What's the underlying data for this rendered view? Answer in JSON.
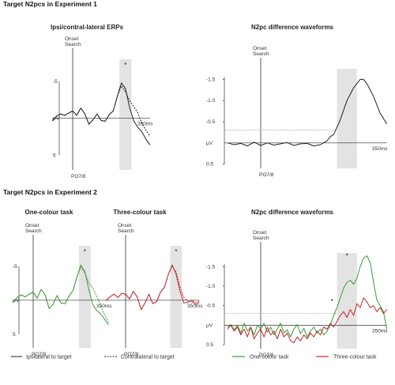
{
  "sections": [
    {
      "title": "Target N2pcs in Experiment 1"
    },
    {
      "title": "Target N2pcs in Experiment 2"
    }
  ],
  "chart_data": [
    {
      "type": "line",
      "title": "Ipsi/contral-lateral ERPs",
      "ylabel": "μV",
      "xlabel_end": "350ms",
      "onset_label": [
        "Onset",
        "Search"
      ],
      "electrode": "PO7/8",
      "yticks": [
        "-5",
        "5"
      ],
      "ylim": [
        -8,
        7
      ],
      "xlim": [
        -100,
        380
      ],
      "shaded_window": [
        230,
        290
      ],
      "significance": "*",
      "series": [
        {
          "key": "ipsi",
          "style": "solid",
          "color": "#222222",
          "x": [
            -100,
            -80,
            -60,
            -40,
            -20,
            0,
            20,
            40,
            60,
            80,
            100,
            120,
            140,
            160,
            180,
            200,
            220,
            240,
            260,
            280,
            300,
            320,
            340,
            360,
            380
          ],
          "values": [
            0.3,
            -0.3,
            -0.6,
            -0.4,
            -0.7,
            -1.0,
            -0.4,
            -1.4,
            -0.6,
            0.8,
            0.2,
            -0.6,
            0.3,
            0.4,
            -0.5,
            -1.0,
            -3.0,
            -4.8,
            -4.0,
            -1.5,
            0.3,
            1.2,
            1.8,
            2.8,
            3.6
          ]
        },
        {
          "key": "contra",
          "style": "dashed",
          "color": "#222222",
          "x": [
            -100,
            -80,
            -60,
            -40,
            -20,
            0,
            20,
            40,
            60,
            80,
            100,
            120,
            140,
            160,
            180,
            200,
            220,
            240,
            260,
            280,
            300,
            320,
            340,
            360,
            380
          ],
          "values": [
            0.3,
            -0.3,
            -0.6,
            -0.4,
            -0.7,
            -1.0,
            -0.4,
            -1.4,
            -0.6,
            0.8,
            0.2,
            -0.6,
            0.3,
            0.4,
            -0.5,
            -1.0,
            -3.0,
            -4.4,
            -3.6,
            -2.4,
            -1.6,
            -0.8,
            0.6,
            1.6,
            2.4
          ]
        }
      ]
    },
    {
      "type": "line",
      "title": "N2pc difference waveforms",
      "ylabel": "μV",
      "xlabel_end": "350ms",
      "onset_label": [
        "Onset",
        "Search"
      ],
      "electrode": "PO7/8",
      "yticks": [
        "-1.5",
        "-1.0",
        "-0.5",
        "μV",
        "0.5"
      ],
      "ytick_values": [
        -1.5,
        -1.0,
        -0.5,
        0.0,
        0.5
      ],
      "ylim": [
        -1.75,
        0.6
      ],
      "xlim": [
        -100,
        380
      ],
      "shaded_window": [
        230,
        290
      ],
      "threshold": -0.3,
      "series": [
        {
          "key": "difference",
          "style": "solid",
          "color": "#222222",
          "x": [
            -100,
            -80,
            -60,
            -40,
            -20,
            0,
            20,
            40,
            60,
            80,
            100,
            120,
            140,
            160,
            180,
            200,
            210,
            220,
            240,
            260,
            280,
            300,
            310,
            320,
            340,
            360,
            380
          ],
          "values": [
            0.0,
            0.04,
            0.01,
            0.07,
            -0.02,
            0.06,
            0.0,
            0.05,
            0.02,
            -0.01,
            0.06,
            0.02,
            0.01,
            0.07,
            0.04,
            -0.05,
            -0.15,
            -0.2,
            -0.55,
            -1.0,
            -1.3,
            -1.5,
            -1.5,
            -1.4,
            -1.1,
            -0.7,
            -0.45
          ]
        }
      ]
    },
    {
      "type": "line",
      "title": "One-colour task",
      "ylabel": "μV",
      "xlabel_end": "350ms",
      "onset_label": [
        "Onset",
        "Search"
      ],
      "electrode": "PO7/8",
      "yticks": [
        "-5",
        "5"
      ],
      "ylim": [
        -8,
        7
      ],
      "xlim": [
        -100,
        380
      ],
      "shaded_window": [
        230,
        290
      ],
      "significance": "*",
      "series": [
        {
          "key": "ipsi",
          "style": "solid",
          "color": "#3a9a3a",
          "x": [
            -100,
            -80,
            -60,
            -40,
            -20,
            0,
            20,
            40,
            60,
            80,
            100,
            120,
            140,
            160,
            180,
            200,
            220,
            240,
            260,
            280,
            300,
            320,
            340,
            360,
            380
          ],
          "values": [
            0.2,
            -0.4,
            -0.8,
            -0.5,
            -0.9,
            -1.2,
            -0.3,
            -1.6,
            -0.8,
            1.2,
            0.6,
            -0.7,
            0.4,
            0.5,
            -0.6,
            -1.4,
            -3.4,
            -5.2,
            -4.2,
            -1.6,
            0.6,
            1.5,
            2.0,
            2.8,
            3.6
          ]
        },
        {
          "key": "contra",
          "style": "dashed",
          "color": "#3a9a3a",
          "x": [
            -100,
            -80,
            -60,
            -40,
            -20,
            0,
            20,
            40,
            60,
            80,
            100,
            120,
            140,
            160,
            180,
            200,
            220,
            240,
            260,
            280,
            300,
            320,
            340,
            360,
            380
          ],
          "values": [
            0.2,
            -0.4,
            -0.8,
            -0.5,
            -0.9,
            -1.2,
            -0.3,
            -1.6,
            -0.8,
            1.2,
            0.6,
            -0.7,
            0.4,
            0.5,
            -0.6,
            -1.4,
            -3.4,
            -4.9,
            -4.0,
            -2.6,
            -1.8,
            -0.6,
            0.8,
            2.2,
            3.2
          ]
        }
      ]
    },
    {
      "type": "line",
      "title": "Three-colour task",
      "ylabel": "",
      "xlabel_end": "350ms",
      "onset_label": [
        "Onset",
        "Search"
      ],
      "electrode": "PO7/8",
      "yticks": [],
      "ylim": [
        -8,
        7
      ],
      "xlim": [
        -100,
        380
      ],
      "shaded_window": [
        230,
        290
      ],
      "significance": "*",
      "series": [
        {
          "key": "ipsi",
          "style": "solid",
          "color": "#c0282d",
          "x": [
            -100,
            -80,
            -60,
            -40,
            -20,
            0,
            20,
            40,
            60,
            80,
            100,
            120,
            140,
            160,
            180,
            200,
            220,
            240,
            260,
            280,
            300,
            320,
            340,
            360,
            380
          ],
          "values": [
            0.0,
            -0.5,
            -0.9,
            -0.4,
            -1.0,
            -0.9,
            -0.2,
            -1.3,
            -0.5,
            1.4,
            0.4,
            -0.9,
            0.5,
            0.2,
            -1.2,
            -1.9,
            -3.8,
            -5.2,
            -3.8,
            -1.4,
            0.4,
            0.3,
            0.1,
            0.6,
            0.3
          ]
        },
        {
          "key": "contra",
          "style": "dashed",
          "color": "#c0282d",
          "x": [
            -100,
            -80,
            -60,
            -40,
            -20,
            0,
            20,
            40,
            60,
            80,
            100,
            120,
            140,
            160,
            180,
            200,
            220,
            240,
            260,
            280,
            300,
            320,
            340,
            360,
            380
          ],
          "values": [
            0.0,
            -0.5,
            -0.9,
            -0.4,
            -1.0,
            -0.9,
            -0.2,
            -1.3,
            -0.5,
            1.4,
            0.4,
            -0.9,
            0.5,
            0.2,
            -1.2,
            -1.9,
            -3.8,
            -5.0,
            -4.2,
            -2.0,
            -0.4,
            0.1,
            0.0,
            0.3,
            0.1
          ]
        }
      ]
    },
    {
      "type": "line",
      "title": "N2pc difference waveforms",
      "ylabel": "μV",
      "xlabel_end": "350ms",
      "onset_label": [
        "Onset",
        "Search"
      ],
      "electrode": "PO7/8",
      "yticks": [
        "-1.5",
        "-1.0",
        "-0.5",
        "μV",
        "0.5"
      ],
      "ytick_values": [
        -1.5,
        -1.0,
        -0.5,
        0.0,
        0.5
      ],
      "ylim": [
        -1.85,
        0.6
      ],
      "xlim": [
        -100,
        380
      ],
      "shaded_window": [
        230,
        290
      ],
      "threshold": -0.3,
      "significance_marks": [
        {
          "label": "*",
          "x": 215,
          "y": -0.55
        },
        {
          "label": "*",
          "x": 260,
          "y": -1.72
        }
      ],
      "series": [
        {
          "key": "one-colour",
          "style": "solid",
          "color": "#3a9a3a",
          "x": [
            -100,
            -90,
            -80,
            -70,
            -60,
            -50,
            -40,
            -30,
            -20,
            -10,
            0,
            10,
            20,
            30,
            40,
            50,
            60,
            70,
            80,
            90,
            100,
            110,
            120,
            130,
            140,
            150,
            160,
            170,
            180,
            190,
            200,
            210,
            220,
            230,
            240,
            250,
            260,
            270,
            280,
            290,
            300,
            310,
            320,
            330,
            340,
            350,
            360,
            370,
            380
          ],
          "values": [
            0.05,
            -0.02,
            0.12,
            0.0,
            0.2,
            -0.05,
            0.15,
            0.05,
            0.25,
            0.0,
            0.1,
            -0.05,
            0.18,
            0.05,
            0.25,
            0.1,
            -0.05,
            0.2,
            0.12,
            0.3,
            0.1,
            -0.02,
            0.22,
            0.08,
            0.3,
            0.15,
            0.05,
            0.2,
            0.1,
            0.25,
            0.15,
            0.0,
            -0.25,
            -0.45,
            -0.7,
            -0.95,
            -1.1,
            -1.15,
            -1.05,
            -1.2,
            -1.5,
            -1.72,
            -1.78,
            -1.6,
            -1.1,
            -0.65,
            -0.5,
            -0.35,
            0.1
          ]
        },
        {
          "key": "three-colour",
          "style": "solid",
          "color": "#c0282d",
          "x": [
            -100,
            -90,
            -80,
            -70,
            -60,
            -50,
            -40,
            -30,
            -20,
            -10,
            0,
            10,
            20,
            30,
            40,
            50,
            60,
            70,
            80,
            90,
            100,
            110,
            120,
            130,
            140,
            150,
            160,
            170,
            180,
            190,
            200,
            210,
            220,
            230,
            240,
            250,
            260,
            270,
            280,
            290,
            300,
            310,
            320,
            330,
            340,
            350,
            360,
            370,
            380
          ],
          "values": [
            0.1,
            0.0,
            0.15,
            0.05,
            0.25,
            0.1,
            0.3,
            0.05,
            0.35,
            0.2,
            0.1,
            0.3,
            0.05,
            0.25,
            0.15,
            0.35,
            0.1,
            0.3,
            0.2,
            0.4,
            0.45,
            0.3,
            0.4,
            0.25,
            0.35,
            0.2,
            0.3,
            0.15,
            0.25,
            0.05,
            0.1,
            -0.05,
            0.05,
            -0.1,
            -0.25,
            -0.35,
            -0.2,
            -0.4,
            -0.25,
            -0.55,
            -0.45,
            -0.7,
            -0.6,
            -0.45,
            -0.5,
            -0.35,
            -0.45,
            -0.3,
            -0.4
          ]
        }
      ]
    }
  ],
  "legends": [
    {
      "label": "Ipsilateral to target",
      "style": "solid",
      "color": "#222222"
    },
    {
      "label": "Contralateral to target",
      "style": "dashed",
      "color": "#222222"
    },
    {
      "label": "One-colour task",
      "style": "solid",
      "color": "#3a9a3a"
    },
    {
      "label": "Three-colour task",
      "style": "solid",
      "color": "#c0282d"
    }
  ],
  "colors": {
    "shade": "#e3e3e3",
    "axis": "#333333",
    "threshold": "#9a9a9a"
  }
}
